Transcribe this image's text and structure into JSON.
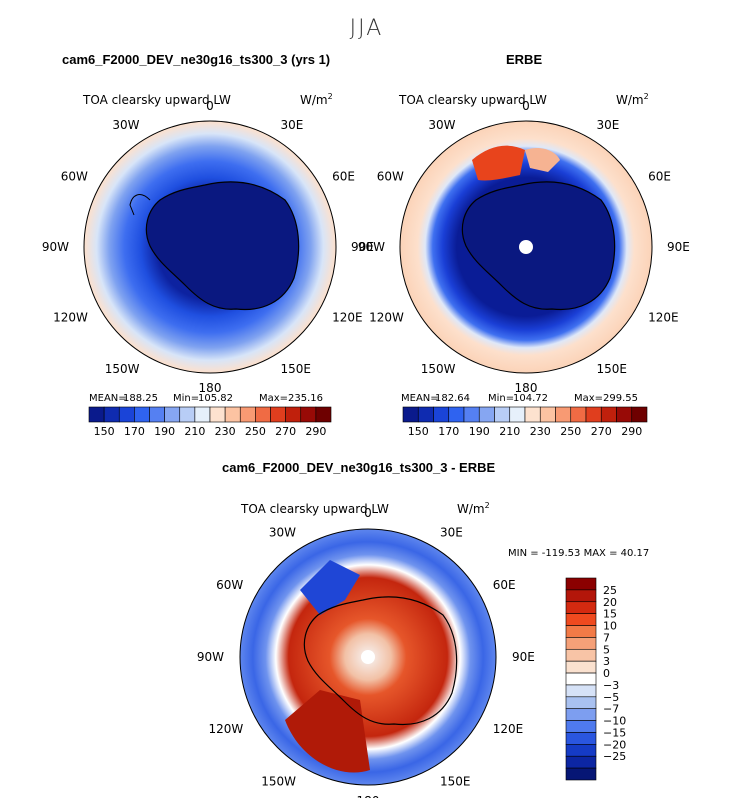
{
  "season": "JJA",
  "panels": {
    "model": {
      "case_title": "cam6_F2000_DEV_ne30g16_ts300_3 (yrs 1)",
      "variable": "TOA clearsky upward LW",
      "units": "W/m",
      "units_exp": "2",
      "stats": {
        "mean_label": "MEAN=",
        "mean": "188.25",
        "min_label": "Min=",
        "min": "105.82",
        "max_label": "Max=",
        "max": "235.16"
      }
    },
    "obs": {
      "case_title": "ERBE",
      "variable": "TOA clearsky upward LW",
      "units": "W/m",
      "units_exp": "2",
      "stats": {
        "mean_label": "MEAN=",
        "mean": "182.64",
        "min_label": "Min=",
        "min": "104.72",
        "max_label": "Max=",
        "max": "299.55"
      }
    },
    "diff": {
      "case_title": "cam6_F2000_DEV_ne30g16_ts300_3 - ERBE",
      "variable": "TOA clearsky upward LW",
      "units": "W/m",
      "units_exp": "2",
      "stats_text": "MIN = -119.53 MAX =  40.17"
    }
  },
  "longitude_labels": [
    "0",
    "30E",
    "60E",
    "90E",
    "120E",
    "150E",
    "180",
    "150W",
    "120W",
    "90W",
    "60W",
    "30W"
  ],
  "colorbar_abs": {
    "labels": [
      "150",
      "170",
      "190",
      "210",
      "230",
      "250",
      "270",
      "290"
    ],
    "colors": [
      "#0a1a8c",
      "#0f2bb0",
      "#1a44d8",
      "#2f63f0",
      "#5580f2",
      "#86a6f2",
      "#b8cdf6",
      "#e6f0fb",
      "#fde2cf",
      "#fcc3a2",
      "#f89a73",
      "#f06b44",
      "#e03e1e",
      "#c0200c",
      "#980a06",
      "#6e0000"
    ]
  },
  "colorbar_diff": {
    "labels": [
      "25",
      "20",
      "15",
      "10",
      "7",
      "5",
      "3",
      "0",
      "−3",
      "−5",
      "−7",
      "−10",
      "−15",
      "−20",
      "−25"
    ],
    "colors": [
      "#8b0000",
      "#b3160a",
      "#d42a10",
      "#ef4a1f",
      "#f27a47",
      "#f5a078",
      "#f8c4a6",
      "#fae1cf",
      "#ffffff",
      "#d6e2f7",
      "#a9c1f0",
      "#7d9ef0",
      "#4f7aee",
      "#2a56e0",
      "#153bc6",
      "#0c26a3",
      "#061675"
    ]
  },
  "chart_data": [
    {
      "type": "heatmap",
      "projection": "south-polar-stereographic",
      "title": "cam6_F2000_DEV_ne30g16_ts300_3 (yrs 1)",
      "variable": "TOA clearsky upward LW",
      "units": "W/m2",
      "mean": 188.25,
      "min": 105.82,
      "max": 235.16,
      "contour_levels": [
        150,
        160,
        170,
        180,
        190,
        200,
        210,
        220,
        230,
        240,
        250,
        260,
        270,
        280,
        290
      ]
    },
    {
      "type": "heatmap",
      "projection": "south-polar-stereographic",
      "title": "ERBE",
      "variable": "TOA clearsky upward LW",
      "units": "W/m2",
      "mean": 182.64,
      "min": 104.72,
      "max": 299.55,
      "contour_levels": [
        150,
        160,
        170,
        180,
        190,
        200,
        210,
        220,
        230,
        240,
        250,
        260,
        270,
        280,
        290
      ]
    },
    {
      "type": "heatmap",
      "projection": "south-polar-stereographic",
      "title": "cam6_F2000_DEV_ne30g16_ts300_3 - ERBE",
      "variable": "TOA clearsky upward LW",
      "units": "W/m2",
      "min": -119.53,
      "max": 40.17,
      "contour_levels": [
        -25,
        -20,
        -15,
        -10,
        -7,
        -5,
        -3,
        0,
        3,
        5,
        7,
        10,
        15,
        20,
        25
      ]
    }
  ]
}
